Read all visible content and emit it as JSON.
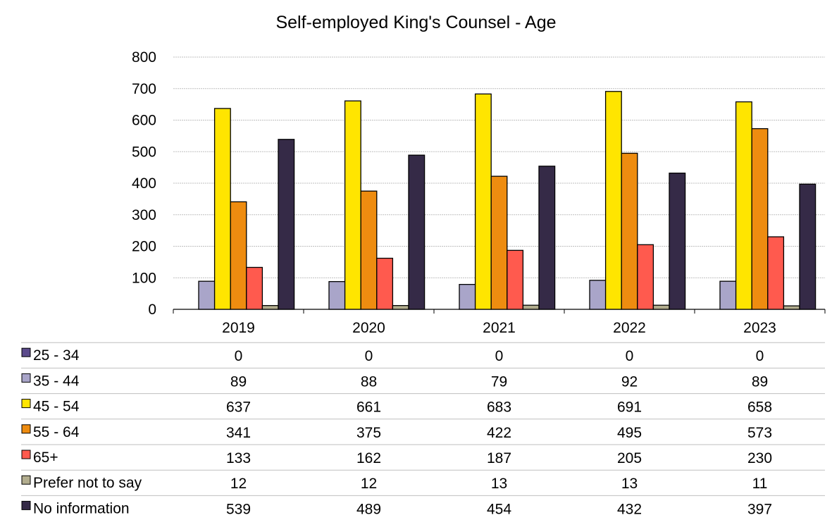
{
  "chart_data": {
    "type": "bar",
    "title": "Self-employed King's Counsel - Age",
    "categories": [
      "2019",
      "2020",
      "2021",
      "2022",
      "2023"
    ],
    "ylim": [
      0,
      800
    ],
    "yticks": [
      0,
      100,
      200,
      300,
      400,
      500,
      600,
      700,
      800
    ],
    "grid": true,
    "legend": "data-table-below",
    "series": [
      {
        "name": "25 - 34",
        "color": "#5B4A8B",
        "values": [
          0,
          0,
          0,
          0,
          0
        ]
      },
      {
        "name": "35 - 44",
        "color": "#A9A5C9",
        "values": [
          89,
          88,
          79,
          92,
          89
        ]
      },
      {
        "name": "45 - 54",
        "color": "#FFE500",
        "values": [
          637,
          661,
          683,
          691,
          658
        ]
      },
      {
        "name": "55 - 64",
        "color": "#EE8C10",
        "values": [
          341,
          375,
          422,
          495,
          573
        ]
      },
      {
        "name": "65+",
        "color": "#FF5A4E",
        "values": [
          133,
          162,
          187,
          205,
          230
        ]
      },
      {
        "name": "Prefer not to say",
        "color": "#B2AD8E",
        "values": [
          12,
          12,
          13,
          13,
          11
        ]
      },
      {
        "name": "No information",
        "color": "#352A47",
        "values": [
          539,
          489,
          454,
          432,
          397
        ]
      }
    ]
  }
}
